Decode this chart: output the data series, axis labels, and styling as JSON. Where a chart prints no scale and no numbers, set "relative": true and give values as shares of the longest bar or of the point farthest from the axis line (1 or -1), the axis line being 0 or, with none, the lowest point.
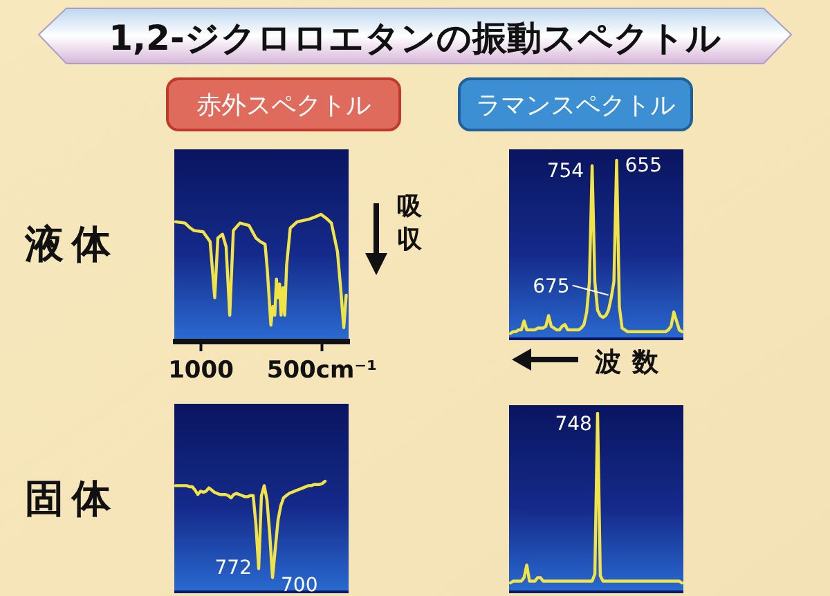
{
  "chart_data": [
    {
      "type": "line",
      "title": "1,2-ジクロロエタンの振動スペクトル",
      "subtitle": "赤外スペクトル",
      "relative": true,
      "xlim": [
        1110,
        390
      ],
      "xticks": [
        1000,
        {
          "value": 500,
          "label": "500cm⁻¹"
        }
      ],
      "tick_labels": "x",
      "annotations": [
        "液体",
        "吸収"
      ],
      "series": [
        {
          "color": "#f2e447",
          "x": [
            1104,
            1066,
            1044,
            1029,
            991,
            962,
            943,
            930,
            911,
            896,
            881,
            866,
            839,
            801,
            773,
            754,
            735,
            726,
            711,
            703,
            695,
            688,
            682,
            675,
            669,
            661,
            654,
            646,
            631,
            603,
            555,
            527,
            504,
            483,
            461,
            436,
            423,
            410,
            400
          ],
          "values": [
            0.94,
            0.93,
            0.89,
            0.87,
            0.86,
            0.78,
            0.33,
            0.81,
            0.84,
            0.74,
            0.19,
            0.87,
            0.93,
            0.91,
            0.81,
            0.78,
            0.76,
            0.56,
            0.11,
            0.26,
            0.19,
            0.48,
            0.33,
            0.44,
            0.19,
            0.41,
            0.19,
            0.59,
            0.89,
            0.94,
            0.96,
            0.98,
            1.0,
            0.97,
            0.93,
            0.7,
            0.41,
            0.09,
            0.35
          ]
        }
      ]
    },
    {
      "type": "line",
      "subtitle": "ラマンスペクトル",
      "xlabel": "波数",
      "relative": true,
      "tick_labels": false,
      "annotations": [
        "754",
        "655",
        "675"
      ],
      "categories": [
        null,
        null,
        null,
        null,
        null,
        null,
        null,
        null,
        null,
        null,
        null,
        null,
        null,
        null,
        null,
        null,
        null,
        null,
        null,
        null,
        null,
        null,
        null,
        null,
        null,
        null,
        null,
        null,
        null,
        null,
        null,
        null,
        null,
        null,
        null,
        null,
        null,
        null,
        null,
        null,
        null,
        null,
        null,
        null,
        null,
        null,
        null,
        null,
        null,
        null,
        null,
        null,
        null,
        null,
        null,
        null,
        null,
        null,
        null,
        null,
        null,
        null,
        null,
        null
      ],
      "series": [
        {
          "color": "#f2e447",
          "values": [
            0.03,
            0.04,
            0.04,
            0.05,
            0.05,
            0.1,
            0.05,
            0.05,
            0.05,
            0.05,
            0.06,
            0.06,
            0.06,
            0.07,
            0.13,
            0.07,
            0.06,
            0.05,
            0.05,
            0.07,
            0.08,
            0.05,
            0.05,
            0.05,
            0.05,
            0.05,
            0.06,
            0.08,
            0.15,
            0.32,
            0.97,
            0.32,
            0.16,
            0.13,
            0.12,
            0.13,
            0.16,
            0.23,
            0.32,
            1.0,
            0.18,
            0.06,
            0.05,
            0.04,
            0.04,
            0.04,
            0.04,
            0.04,
            0.04,
            0.04,
            0.04,
            0.04,
            0.04,
            0.04,
            0.04,
            0.04,
            0.04,
            0.04,
            0.05,
            0.07,
            0.15,
            0.1,
            0.05,
            0.04
          ]
        }
      ]
    },
    {
      "type": "line",
      "relative": true,
      "tick_labels": false,
      "annotations": [
        "固体",
        "772",
        "700"
      ],
      "categories": [
        null,
        null,
        null,
        null,
        null,
        null,
        null,
        null,
        null,
        null,
        null,
        null,
        null,
        null,
        null,
        null,
        null,
        null,
        null,
        null,
        null,
        null,
        null,
        null,
        null,
        null,
        null,
        null,
        null,
        null,
        null,
        null,
        null,
        null,
        null,
        null,
        null,
        null,
        null,
        null,
        null,
        null,
        null,
        null,
        null,
        null,
        null,
        null,
        null,
        null,
        null,
        null,
        null,
        null,
        null,
        null,
        null,
        null,
        null,
        null,
        null,
        null,
        null
      ],
      "series": [
        {
          "color": "#f2e447",
          "values": [
            0.96,
            0.96,
            0.96,
            0.96,
            0.96,
            0.95,
            0.95,
            0.92,
            0.88,
            0.91,
            0.9,
            0.91,
            0.94,
            0.92,
            0.9,
            0.89,
            0.88,
            0.88,
            0.88,
            0.87,
            0.85,
            0.88,
            0.89,
            0.88,
            0.87,
            0.86,
            0.86,
            0.87,
            0.87,
            0.61,
            0.21,
            0.87,
            0.96,
            0.83,
            0.52,
            0.13,
            0.39,
            0.65,
            0.78,
            0.85,
            0.87,
            0.89,
            0.9,
            0.91,
            0.92,
            0.93,
            0.94,
            0.95,
            0.96,
            0.96,
            0.97,
            0.97,
            0.97,
            0.98,
            1.0,
            null,
            null,
            null,
            null,
            null,
            null,
            null,
            null
          ]
        }
      ]
    },
    {
      "type": "line",
      "relative": true,
      "tick_labels": false,
      "annotations": [
        "748"
      ],
      "categories": [
        null,
        null,
        null,
        null,
        null,
        null,
        null,
        null,
        null,
        null,
        null,
        null,
        null,
        null,
        null,
        null,
        null,
        null,
        null,
        null,
        null,
        null,
        null,
        null,
        null,
        null,
        null,
        null,
        null,
        null,
        null,
        null,
        null,
        null,
        null,
        null,
        null,
        null,
        null,
        null,
        null,
        null,
        null,
        null,
        null,
        null,
        null,
        null,
        null,
        null,
        null,
        null,
        null,
        null,
        null,
        null,
        null,
        null,
        null,
        null,
        null,
        null,
        null,
        null
      ],
      "series": [
        {
          "color": "#f2e447",
          "values": [
            0.05,
            0.06,
            0.06,
            0.06,
            0.06,
            0.08,
            0.15,
            0.06,
            0.06,
            0.06,
            0.08,
            0.08,
            0.06,
            0.06,
            0.06,
            0.06,
            0.06,
            0.06,
            0.06,
            0.06,
            0.06,
            0.06,
            0.06,
            0.06,
            0.06,
            0.06,
            0.06,
            0.06,
            0.06,
            0.06,
            0.06,
            0.1,
            1.0,
            0.09,
            0.06,
            0.06,
            0.06,
            0.06,
            0.06,
            0.06,
            0.06,
            0.06,
            0.06,
            0.06,
            0.06,
            0.06,
            0.06,
            0.06,
            0.06,
            0.06,
            0.06,
            0.06,
            0.06,
            0.06,
            0.06,
            0.06,
            0.06,
            0.06,
            0.06,
            0.06,
            0.06,
            0.06,
            0.06,
            0.05
          ]
        }
      ]
    }
  ]
}
